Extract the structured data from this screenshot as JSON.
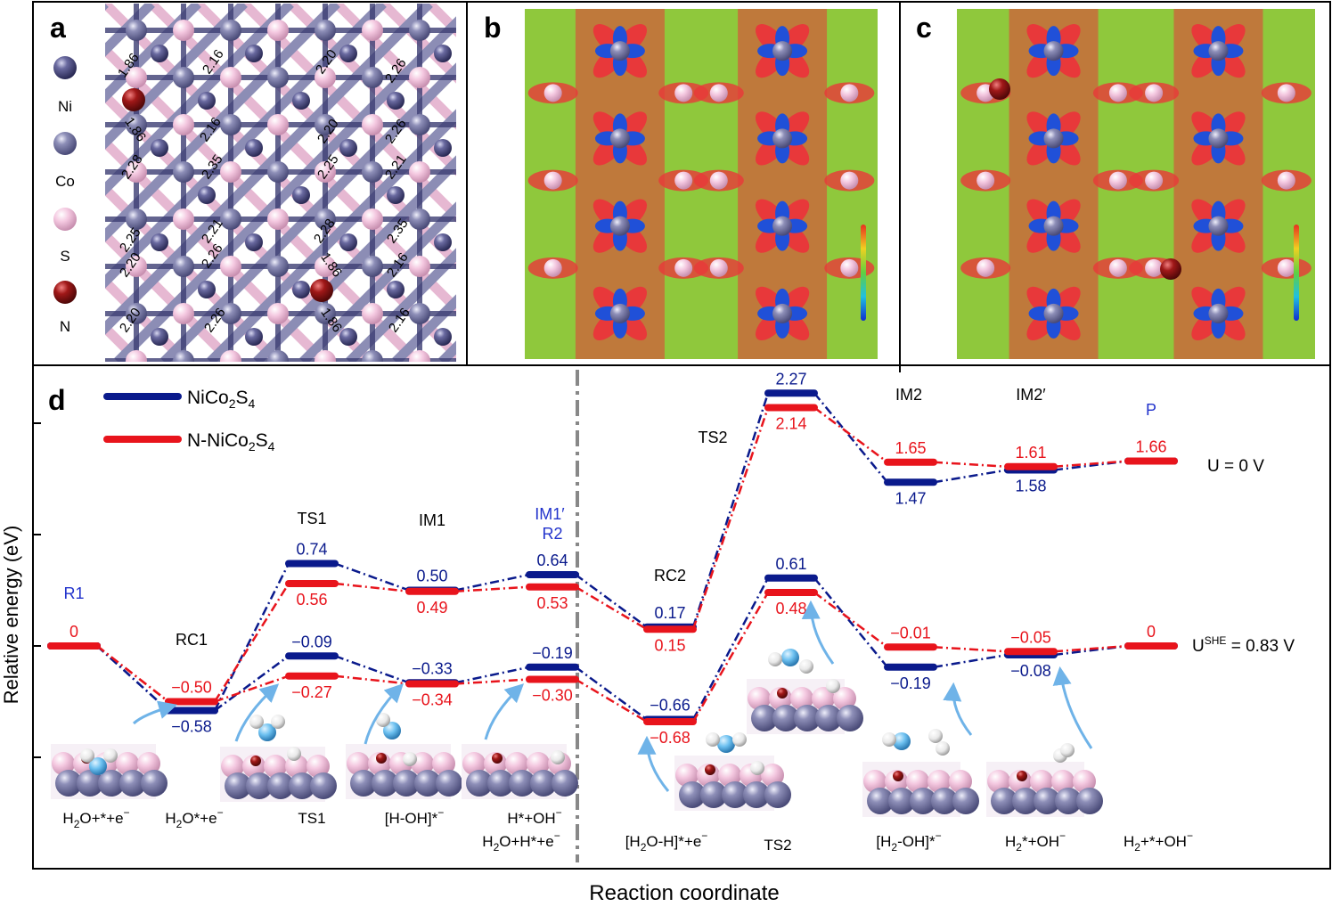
{
  "panels": {
    "a": "a",
    "b": "b",
    "c": "c",
    "d": "d"
  },
  "panel_a": {
    "legend": [
      {
        "label": "Ni",
        "color": "#55558a"
      },
      {
        "label": "Co",
        "color": "#7f80a8"
      },
      {
        "label": "S",
        "color": "#f2c6dc"
      },
      {
        "label": "N",
        "color": "#8a1010"
      }
    ],
    "bond_lengths": [
      "1.86",
      "1.86",
      "2.28",
      "2.25",
      "2.20",
      "2.20",
      "2.16",
      "2.16",
      "2.35",
      "2.21",
      "2.26",
      "2.26",
      "2.20",
      "2.20",
      "2.25",
      "2.28",
      "1.86",
      "1.86",
      "2.26",
      "2.26",
      "2.21",
      "2.35",
      "2.16",
      "2.16"
    ]
  },
  "colors": {
    "pristine": "#0a1a8c",
    "ndoped": "#e8141c",
    "divider": "#888888",
    "arrow": "#6fb3e8",
    "label_blue": "#2233cc",
    "map_green": "#8fc83c",
    "map_red": "#e8383a",
    "map_blue": "#2050d8"
  },
  "chart_data": {
    "type": "line",
    "ylabel": "Relative energy (eV)",
    "xlabel": "Reaction coordinate",
    "legend": [
      {
        "prefix": "NiCo",
        "sub1": "2",
        "mid": "S",
        "sub2": "4",
        "series": "pristine"
      },
      {
        "prefix": "N-NiCo",
        "sub1": "2",
        "mid": "S",
        "sub2": "4",
        "series": "ndoped"
      }
    ],
    "conditions": {
      "u0": "U = 0 V",
      "ushe_base": "U",
      "ushe_sup": "SHE",
      "ushe_rest": " = 0.83 V"
    },
    "state_names": [
      "R1",
      "RC1",
      "TS1",
      "IM1",
      "IM1′",
      "R2",
      "RC2",
      "TS2",
      "IM2",
      "IM2′",
      "P"
    ],
    "stages": [
      {
        "x": 0,
        "name": "R1"
      },
      {
        "x": 1,
        "name": "RC1"
      },
      {
        "x": 2,
        "name": "TS1"
      },
      {
        "x": 3,
        "name": "IM1"
      },
      {
        "x": 4,
        "name": "IM1′ R2"
      },
      {
        "x": 5,
        "name": "RC2"
      },
      {
        "x": 6,
        "name": "TS2"
      },
      {
        "x": 7,
        "name": "IM2"
      },
      {
        "x": 8,
        "name": "IM2′"
      },
      {
        "x": 9,
        "name": "P"
      }
    ],
    "series_U0": {
      "pristine": [
        0,
        -0.58,
        0.74,
        0.5,
        0.64,
        0.17,
        2.27,
        1.47,
        1.58,
        1.66
      ],
      "ndoped": [
        0,
        -0.5,
        0.56,
        0.49,
        0.53,
        0.15,
        2.14,
        1.65,
        1.61,
        1.66
      ]
    },
    "series_USHE": {
      "pristine": [
        0,
        -0.58,
        -0.09,
        -0.33,
        -0.19,
        -0.66,
        0.61,
        -0.19,
        -0.08,
        0
      ],
      "ndoped": [
        0,
        -0.5,
        -0.27,
        -0.34,
        -0.3,
        -0.68,
        0.48,
        -0.01,
        -0.05,
        0
      ]
    },
    "labels_U0": {
      "pristine": [
        "",
        "",
        "0.74",
        "0.50",
        "0.64",
        "0.17",
        "2.27",
        "1.47",
        "1.58",
        ""
      ],
      "ndoped": [
        "0",
        "",
        "0.56",
        "0.49",
        "0.53",
        "0.15",
        "2.14",
        "1.65",
        "1.61",
        "1.66"
      ]
    },
    "labels_USHE": {
      "pristine": [
        "",
        "−0.58",
        "−0.09",
        "−0.33",
        "−0.19",
        "−0.66",
        "0.61",
        "−0.19",
        "−0.08",
        ""
      ],
      "ndoped": [
        "",
        "−0.50",
        "−0.27",
        "−0.34",
        "−0.30",
        "−0.68",
        "0.48",
        "−0.01",
        "−0.05",
        "0"
      ]
    },
    "structure_labels": [
      {
        "parts": [
          "H",
          "2",
          "O+*+e",
          "−"
        ]
      },
      {
        "parts": [
          "H",
          "2",
          "O*+e",
          "−"
        ]
      },
      {
        "parts": [
          "TS1"
        ]
      },
      {
        "parts": [
          "[H-OH]*",
          "−"
        ]
      },
      {
        "parts": [
          "H*+OH",
          "−"
        ]
      },
      {
        "parts": [
          "H",
          "2",
          "O+H*+e",
          "−"
        ]
      },
      {
        "parts": [
          "[H",
          "2",
          "O-H]*+e",
          "−"
        ]
      },
      {
        "parts": [
          "TS2"
        ]
      },
      {
        "parts": [
          "[H",
          "2",
          "-OH]*",
          "−"
        ]
      },
      {
        "parts": [
          "H",
          "2",
          "*+OH",
          "−"
        ]
      },
      {
        "parts": [
          "H",
          "2",
          "+*+OH",
          "−"
        ]
      }
    ],
    "ylim": [
      -1.0,
      2.6
    ]
  }
}
